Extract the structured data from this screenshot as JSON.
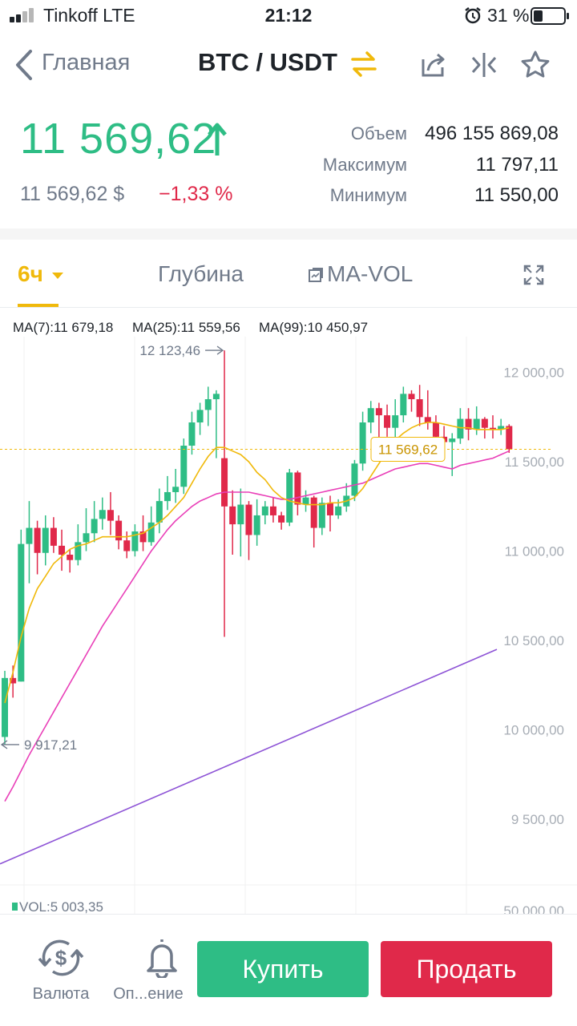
{
  "status_bar": {
    "carrier": "Tinkoff   LTE",
    "time": "21:12",
    "battery_percent": "31 %",
    "battery_level": 0.31,
    "signal_bars": 2
  },
  "nav": {
    "back_label": "Главная",
    "title": "BTC / USDT",
    "icons": [
      "chevron-left-icon",
      "swap-icon",
      "share-icon",
      "compare-icon",
      "star-icon"
    ]
  },
  "ticker": {
    "last_price": "11 569,62",
    "price_usd": "11 569,62 $",
    "change": "−1,33 %",
    "stats": [
      {
        "label": "Объем",
        "value": "496 155 869,08"
      },
      {
        "label": "Максимум",
        "value": "11 797,11"
      },
      {
        "label": "Минимум",
        "value": "11 550,00"
      }
    ],
    "up_color": "#2ebd85",
    "down_color": "#e0294a"
  },
  "tabs": {
    "interval": "6ч",
    "depth": "Глубина",
    "indicator": "MA-VOL"
  },
  "ma_legend": [
    {
      "label": "MA(7):11 679,18",
      "color": "#f0b90b"
    },
    {
      "label": "MA(25):11 559,56",
      "color": "#e93fb8"
    },
    {
      "label": "MA(99):10 450,97",
      "color": "#8e54d6"
    }
  ],
  "chart_data": {
    "type": "candlestick",
    "y_axis": {
      "ticks": [
        "12 000,00",
        "11 500,00",
        "11 000,00",
        "10 500,00",
        "10 000,00",
        "9 500,00"
      ],
      "tick_values": [
        12000,
        11500,
        11000,
        10500,
        10000,
        9500
      ],
      "range": [
        9150,
        12200
      ]
    },
    "max_marker": {
      "label": "12 123,46",
      "value": 12123.46
    },
    "min_marker": {
      "label": "9 917,21",
      "value": 9917.21
    },
    "current_price": {
      "label": "11 569,62",
      "value": 11569.62
    },
    "volume_label": "VOL:5 003,35",
    "volume_axis_tick": "50 000,00",
    "candles": [
      [
        9960,
        10290,
        9917,
        10330
      ],
      [
        10290,
        10260,
        10180,
        10360
      ],
      [
        10270,
        11040,
        10270,
        11120
      ],
      [
        11040,
        11130,
        10820,
        11280
      ],
      [
        11130,
        10990,
        10870,
        11170
      ],
      [
        10990,
        11130,
        10920,
        11200
      ],
      [
        11130,
        11030,
        10990,
        11190
      ],
      [
        11030,
        10980,
        10890,
        11120
      ],
      [
        10980,
        10950,
        10880,
        11010
      ],
      [
        10950,
        11050,
        10920,
        11150
      ],
      [
        11050,
        11100,
        11000,
        11240
      ],
      [
        11100,
        11180,
        11050,
        11280
      ],
      [
        11180,
        11230,
        11120,
        11300
      ],
      [
        11230,
        11170,
        11090,
        11330
      ],
      [
        11170,
        11060,
        11010,
        11200
      ],
      [
        11060,
        11000,
        10960,
        11110
      ],
      [
        11000,
        11110,
        10970,
        11150
      ],
      [
        11110,
        11050,
        11000,
        11200
      ],
      [
        11050,
        11160,
        11030,
        11250
      ],
      [
        11160,
        11280,
        11100,
        11350
      ],
      [
        11280,
        11330,
        11230,
        11420
      ],
      [
        11330,
        11360,
        11270,
        11460
      ],
      [
        11360,
        11590,
        11320,
        11630
      ],
      [
        11590,
        11720,
        11540,
        11780
      ],
      [
        11720,
        11790,
        11650,
        11830
      ],
      [
        11790,
        11850,
        11700,
        11920
      ],
      [
        11850,
        11880,
        11520,
        11900
      ],
      [
        11520,
        11250,
        10520,
        12123
      ],
      [
        11250,
        11150,
        10980,
        11340
      ],
      [
        11150,
        11260,
        10970,
        11350
      ],
      [
        11260,
        11090,
        10950,
        11280
      ],
      [
        11090,
        11200,
        11030,
        11290
      ],
      [
        11200,
        11250,
        11150,
        11280
      ],
      [
        11250,
        11200,
        11160,
        11300
      ],
      [
        11200,
        11160,
        11120,
        11220
      ],
      [
        11160,
        11440,
        11140,
        11460
      ],
      [
        11440,
        11260,
        11200,
        11450
      ],
      [
        11260,
        11300,
        11220,
        11340
      ],
      [
        11300,
        11130,
        11020,
        11310
      ],
      [
        11130,
        11270,
        11090,
        11300
      ],
      [
        11270,
        11200,
        11110,
        11310
      ],
      [
        11200,
        11250,
        11180,
        11290
      ],
      [
        11250,
        11310,
        11220,
        11380
      ],
      [
        11310,
        11490,
        11280,
        11510
      ],
      [
        11490,
        11720,
        11450,
        11780
      ],
      [
        11720,
        11800,
        11660,
        11840
      ],
      [
        11800,
        11760,
        11580,
        11830
      ],
      [
        11760,
        11690,
        11640,
        11820
      ],
      [
        11690,
        11760,
        11630,
        11850
      ],
      [
        11760,
        11880,
        11720,
        11920
      ],
      [
        11880,
        11850,
        11780,
        11900
      ],
      [
        11850,
        11750,
        11700,
        11930
      ],
      [
        11750,
        11720,
        11680,
        11900
      ],
      [
        11720,
        11640,
        11500,
        11760
      ],
      [
        11640,
        11610,
        11540,
        11700
      ],
      [
        11610,
        11630,
        11420,
        11660
      ],
      [
        11630,
        11740,
        11600,
        11800
      ],
      [
        11740,
        11680,
        11620,
        11800
      ],
      [
        11680,
        11740,
        11650,
        11810
      ],
      [
        11740,
        11690,
        11630,
        11750
      ],
      [
        11690,
        11680,
        11630,
        11760
      ],
      [
        11680,
        11700,
        11650,
        11740
      ],
      [
        11700,
        11570,
        11550,
        11710
      ]
    ],
    "ma7": [
      10150,
      10320,
      10520,
      10680,
      10790,
      10860,
      10930,
      10970,
      11010,
      11030,
      11040,
      11060,
      11080,
      11080,
      11080,
      11080,
      11090,
      11100,
      11130,
      11160,
      11200,
      11250,
      11300,
      11380,
      11460,
      11530,
      11580,
      11580,
      11560,
      11540,
      11500,
      11440,
      11400,
      11340,
      11300,
      11280,
      11270,
      11260,
      11260,
      11260,
      11270,
      11270,
      11280,
      11300,
      11350,
      11420,
      11490,
      11560,
      11620,
      11660,
      11690,
      11710,
      11720,
      11720,
      11710,
      11700,
      11690,
      11690,
      11680,
      11680,
      11680,
      11680,
      11690
    ],
    "ma25": [
      9600,
      9680,
      9770,
      9860,
      9940,
      10020,
      10100,
      10180,
      10260,
      10340,
      10420,
      10500,
      10580,
      10650,
      10720,
      10790,
      10860,
      10930,
      11000,
      11060,
      11120,
      11170,
      11210,
      11250,
      11280,
      11300,
      11320,
      11330,
      11330,
      11330,
      11330,
      11320,
      11310,
      11300,
      11290,
      11290,
      11300,
      11310,
      11320,
      11330,
      11340,
      11350,
      11360,
      11370,
      11380,
      11400,
      11420,
      11440,
      11460,
      11470,
      11480,
      11490,
      11490,
      11480,
      11470,
      11460,
      11480,
      11490,
      11500,
      11510,
      11520,
      11540,
      11560
    ],
    "ma99_points": [
      [
        0,
        9250
      ],
      [
        620,
        10450
      ]
    ]
  },
  "bottom_bar": {
    "currency_label": "Валюта",
    "alert_label": "Оп...ение",
    "buy_label": "Купить",
    "sell_label": "Продать"
  }
}
